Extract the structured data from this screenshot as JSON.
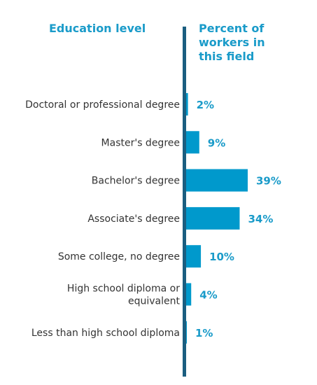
{
  "header": {
    "left_title": "Education level",
    "right_title": "Percent of\nworkers in\nthis field"
  },
  "colors": {
    "bar": "#0099cc",
    "axis": "#1b5e80",
    "text_accent": "#1a9bc9"
  },
  "chart_data": {
    "type": "bar",
    "orientation": "horizontal",
    "categories": [
      "Doctoral or professional degree",
      "Master's degree",
      "Bachelor's degree",
      "Associate's degree",
      "Some college, no degree",
      "High school diploma or equivalent",
      "Less than high school diploma"
    ],
    "category_lines": [
      [
        "Doctoral or professional degree"
      ],
      [
        "Master's degree"
      ],
      [
        "Bachelor's degree"
      ],
      [
        "Associate's degree"
      ],
      [
        "Some college, no degree"
      ],
      [
        "High school diploma or",
        "equivalent"
      ],
      [
        "Less than high school diploma"
      ]
    ],
    "values": [
      2,
      9,
      39,
      34,
      10,
      4,
      1
    ],
    "value_labels": [
      "2%",
      "9%",
      "39%",
      "34%",
      "10%",
      "4%",
      "1%"
    ],
    "unit": "%",
    "xlim": [
      0,
      39
    ]
  }
}
